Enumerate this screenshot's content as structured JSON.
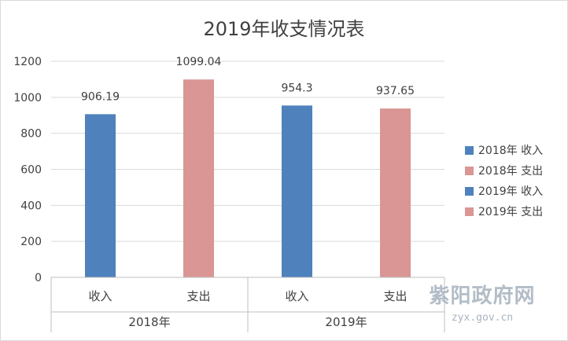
{
  "chart_data": {
    "type": "bar",
    "title": "2019年收支情况表",
    "groups": [
      {
        "label": "2018年",
        "categories": [
          "收入",
          "支出"
        ]
      },
      {
        "label": "2019年",
        "categories": [
          "收入",
          "支出"
        ]
      }
    ],
    "series": [
      {
        "name": "2018年 收入",
        "group": 0,
        "slot": 0,
        "value": 906.19,
        "value_label": "906.19",
        "color": "#4f81bd"
      },
      {
        "name": "2018年 支出",
        "group": 0,
        "slot": 1,
        "value": 1099.04,
        "value_label": "1099.04",
        "color": "#d99694"
      },
      {
        "name": "2019年 收入",
        "group": 1,
        "slot": 0,
        "value": 954.3,
        "value_label": "954.3",
        "color": "#4f81bd"
      },
      {
        "name": "2019年 支出",
        "group": 1,
        "slot": 1,
        "value": 937.65,
        "value_label": "937.65",
        "color": "#d99694"
      }
    ],
    "yticks": [
      0,
      200,
      400,
      600,
      800,
      1000,
      1200
    ],
    "ylim": [
      0,
      1200
    ],
    "grid": true,
    "legend_position": "right"
  },
  "watermark": {
    "text": "紫阳政府网",
    "url": "zyx.gov.cn"
  }
}
